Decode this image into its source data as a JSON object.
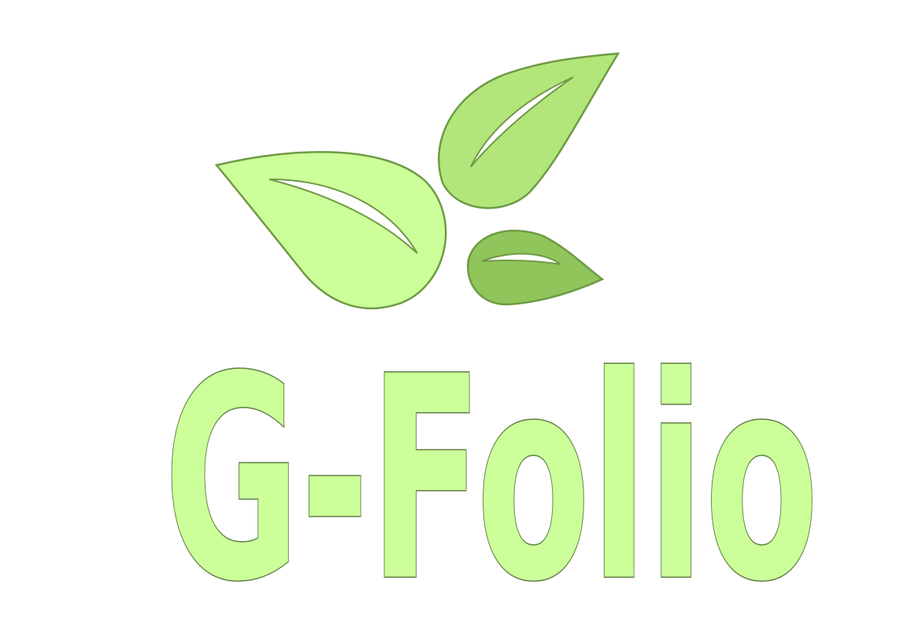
{
  "logo": {
    "wordmark": "G-Folio"
  }
}
